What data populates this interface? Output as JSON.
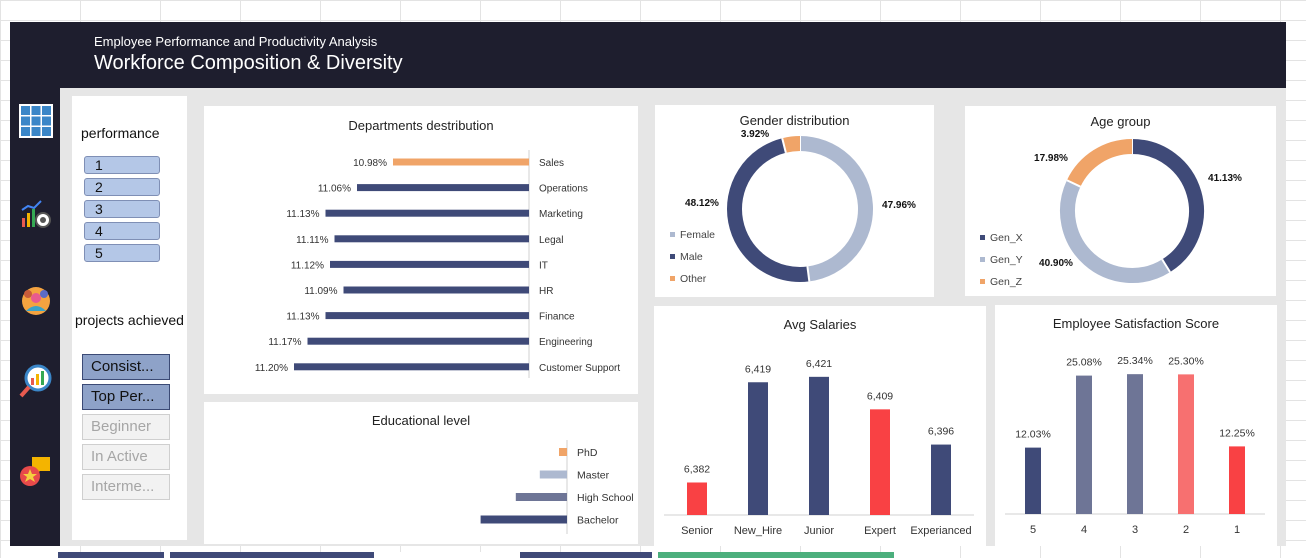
{
  "header": {
    "subtitle": "Employee Performance and Productivity Analysis",
    "title": "Workforce Composition & Diversity"
  },
  "nav": {
    "icons": [
      "grid-icon",
      "analytics-icon",
      "team-icon",
      "report-search-icon",
      "feedback-icon"
    ]
  },
  "slicers": {
    "performance": {
      "label": "performance",
      "items": [
        "1",
        "2",
        "3",
        "4",
        "5"
      ]
    },
    "projects": {
      "label": "projects achieved",
      "items": [
        {
          "label": "Consist...",
          "selected": true
        },
        {
          "label": "Top Per...",
          "selected": true
        },
        {
          "label": "Beginner",
          "selected": false
        },
        {
          "label": "In Active",
          "selected": false
        },
        {
          "label": "Interme...",
          "selected": false
        }
      ]
    }
  },
  "colors": {
    "navy": "#3f4a78",
    "orange": "#f0a468",
    "light": "#adb9d0",
    "red": "#f94144",
    "slate": "#6e7596",
    "salmon": "#f77070"
  },
  "charts": {
    "departments": {
      "title": "Departments destribution",
      "chart_data": {
        "type": "bar",
        "orientation": "horizontal",
        "categories": [
          "Sales",
          "Operations",
          "Marketing",
          "Legal",
          "IT",
          "HR",
          "Finance",
          "Engineering",
          "Customer Support"
        ],
        "values": [
          10.98,
          11.06,
          11.13,
          11.11,
          11.12,
          11.09,
          11.13,
          11.17,
          11.2
        ],
        "labels": [
          "10.98%",
          "11.06%",
          "11.13%",
          "11.11%",
          "11.12%",
          "11.09%",
          "11.13%",
          "11.17%",
          "11.20%"
        ],
        "colors": [
          "#f0a468",
          "#3f4a78",
          "#3f4a78",
          "#3f4a78",
          "#3f4a78",
          "#3f4a78",
          "#3f4a78",
          "#3f4a78",
          "#3f4a78"
        ]
      }
    },
    "education": {
      "title": "Educational level",
      "chart_data": {
        "type": "bar",
        "orientation": "horizontal",
        "categories": [
          "PhD",
          "Master",
          "High School",
          "Bachelor"
        ],
        "values": [
          5,
          17,
          32,
          54
        ],
        "colors": [
          "#f0a468",
          "#adb9d0",
          "#6e7596",
          "#3f4a78"
        ]
      }
    },
    "gender": {
      "title": "Gender distribution",
      "chart_data": {
        "type": "pie",
        "donut": true,
        "categories": [
          "Female",
          "Male",
          "Other"
        ],
        "values": [
          47.96,
          48.12,
          3.92
        ],
        "labels": [
          "47.96%",
          "48.12%",
          "3.92%"
        ],
        "colors": [
          "#adb9d0",
          "#3f4a78",
          "#f0a468"
        ]
      }
    },
    "age": {
      "title": "Age group",
      "chart_data": {
        "type": "pie",
        "donut": true,
        "categories": [
          "Gen_X",
          "Gen_Y",
          "Gen_Z"
        ],
        "values": [
          41.13,
          40.9,
          17.98
        ],
        "labels": [
          "41.13%",
          "40.90%",
          "17.98%"
        ],
        "colors": [
          "#3f4a78",
          "#adb9d0",
          "#f0a468"
        ]
      }
    },
    "salaries": {
      "title": "Avg Salaries",
      "chart_data": {
        "type": "bar",
        "categories": [
          "Senior",
          "New_Hire",
          "Junior",
          "Expert",
          "Experianced"
        ],
        "values": [
          6382,
          6419,
          6421,
          6409,
          6396
        ],
        "labels": [
          "6,382",
          "6,419",
          "6,421",
          "6,409",
          "6,396"
        ],
        "ylim": [
          6370,
          6425
        ],
        "colors": [
          "#f94144",
          "#3f4a78",
          "#3f4a78",
          "#f94144",
          "#3f4a78"
        ]
      }
    },
    "satisfaction": {
      "title": "Employee Satisfaction Score",
      "chart_data": {
        "type": "bar",
        "categories": [
          "5",
          "4",
          "3",
          "2",
          "1"
        ],
        "values": [
          12.03,
          25.08,
          25.34,
          25.3,
          12.25
        ],
        "labels": [
          "12.03%",
          "25.08%",
          "25.34%",
          "25.30%",
          "12.25%"
        ],
        "ylim": [
          0,
          27
        ],
        "colors": [
          "#3f4a78",
          "#6e7596",
          "#6e7596",
          "#f77070",
          "#f94144"
        ]
      }
    }
  },
  "sheet_tabs": [
    "#3f4a78",
    "#3f4a78",
    "#ffffff",
    "#3f4a78",
    "#4caf7d"
  ]
}
